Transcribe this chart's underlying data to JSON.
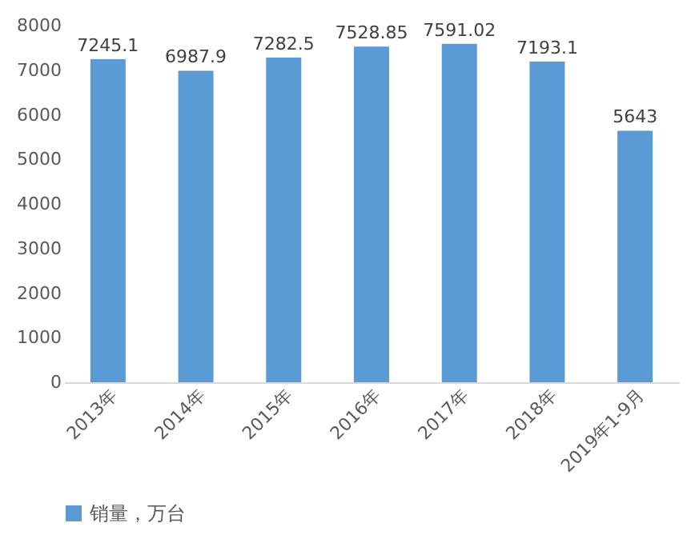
{
  "chart_data": {
    "type": "bar",
    "categories": [
      "2013年",
      "2014年",
      "2015年",
      "2016年",
      "2017年",
      "2018年",
      "2019年1-9月"
    ],
    "series": [
      {
        "name": "销量，万台",
        "color": "#5b9bd5",
        "values": [
          7245.1,
          6987.9,
          7282.5,
          7528.85,
          7591.02,
          7193.1,
          5643
        ]
      }
    ],
    "ylim": [
      0,
      8000
    ],
    "yticks": [
      0,
      1000,
      2000,
      3000,
      4000,
      5000,
      6000,
      7000,
      8000
    ],
    "data_labels": true,
    "grid": false,
    "legend": "bottom"
  }
}
